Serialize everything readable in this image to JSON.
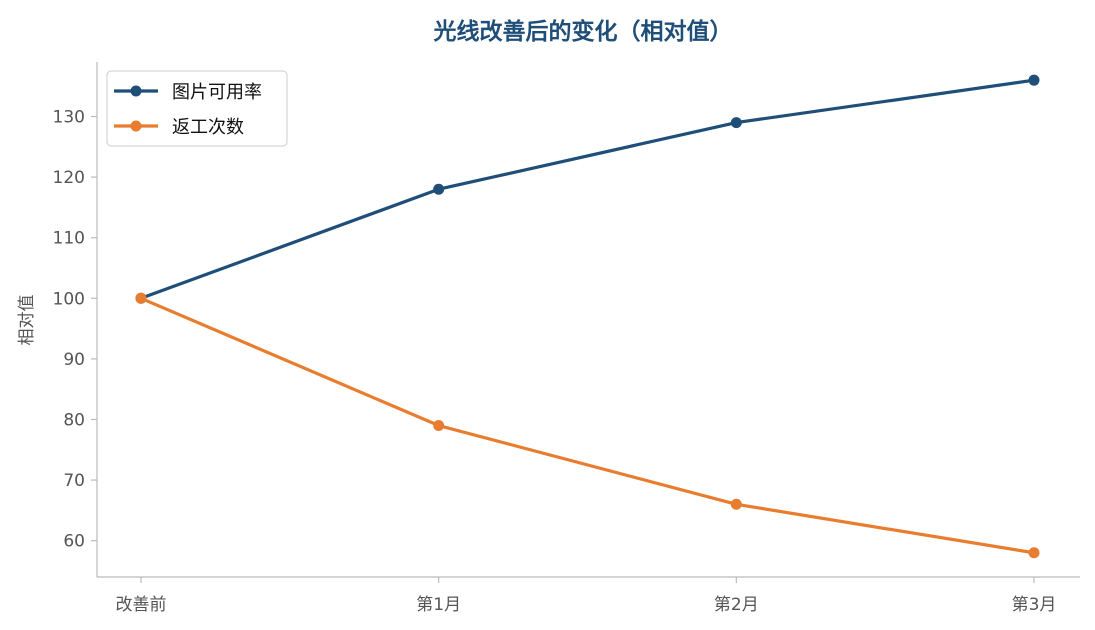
{
  "chart_data": {
    "type": "line",
    "title": "光线改善后的变化（相对值）",
    "xlabel": "",
    "ylabel": "相对值",
    "categories": [
      "改善前",
      "第1月",
      "第2月",
      "第3月"
    ],
    "series": [
      {
        "name": "图片可用率",
        "values": [
          100,
          118,
          129,
          136
        ],
        "color": "#1f4e79"
      },
      {
        "name": "返工次数",
        "values": [
          100,
          79,
          66,
          58
        ],
        "color": "#e87d2f"
      }
    ],
    "ylim": [
      54,
      139
    ],
    "yticks": [
      60,
      70,
      80,
      90,
      100,
      110,
      120,
      130
    ],
    "grid": false,
    "legend": "top-left",
    "axis_color": "#bbbbbb"
  }
}
